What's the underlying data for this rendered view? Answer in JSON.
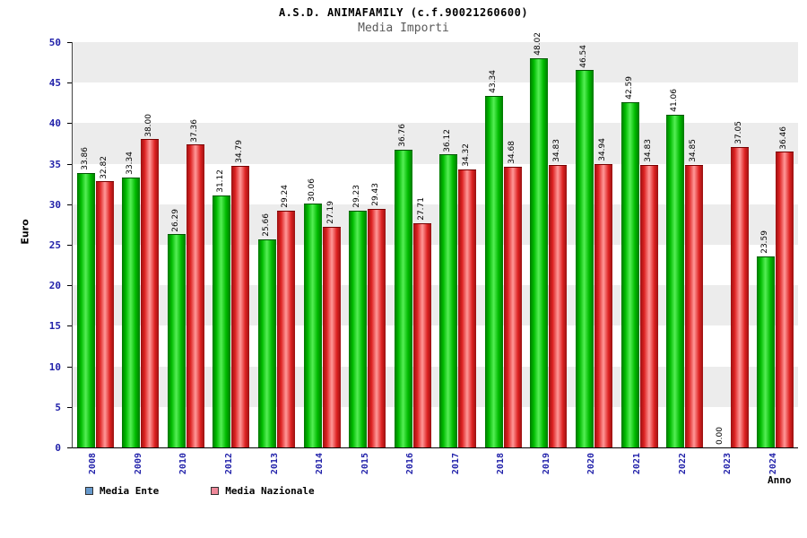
{
  "chart_data": {
    "type": "bar",
    "title": "A.S.D. ANIMAFAMILY (c.f.90021260600)",
    "subtitle": "Media Importi",
    "xlabel": "Anno",
    "ylabel": "Euro",
    "ylim": [
      0,
      50
    ],
    "ytick_step": 5,
    "grid": "striped-bands",
    "legend_position": "bottom-left",
    "axis_label_color": "#2222aa",
    "categories": [
      "2008",
      "2009",
      "2010",
      "2012",
      "2013",
      "2014",
      "2015",
      "2016",
      "2017",
      "2018",
      "2019",
      "2020",
      "2021",
      "2022",
      "2023",
      "2024"
    ],
    "series": [
      {
        "name": "Media Ente",
        "color": "#00bb00",
        "legend_color": "#6699cc",
        "values": [
          33.86,
          33.34,
          26.29,
          31.12,
          25.66,
          30.06,
          29.23,
          36.76,
          36.12,
          43.34,
          48.02,
          46.54,
          42.59,
          41.06,
          0.0,
          23.59
        ]
      },
      {
        "name": "Media Nazionale",
        "color": "#dd2222",
        "legend_color": "#ee8899",
        "values": [
          32.82,
          38.0,
          37.36,
          34.79,
          29.24,
          27.19,
          29.43,
          27.71,
          34.32,
          34.68,
          34.83,
          34.94,
          34.83,
          34.85,
          37.05,
          36.46
        ]
      }
    ]
  }
}
